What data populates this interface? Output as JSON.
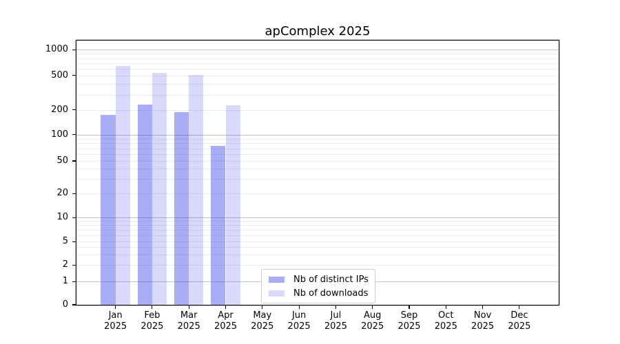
{
  "title": "apComplex 2025",
  "chart_data": {
    "type": "bar",
    "title": "apComplex 2025",
    "categories": [
      "Jan",
      "Feb",
      "Mar",
      "Apr",
      "May",
      "Jun",
      "Jul",
      "Aug",
      "Sep",
      "Oct",
      "Nov",
      "Dec"
    ],
    "x_year_label": "2025",
    "series": [
      {
        "name": "Nb of distinct IPs",
        "color": "rgba(10,16,230,0.35)",
        "values": [
          175,
          230,
          190,
          75,
          0,
          0,
          0,
          0,
          0,
          0,
          0,
          0
        ]
      },
      {
        "name": "Nb of downloads",
        "color": "rgba(10,16,230,0.16)",
        "values": [
          650,
          540,
          510,
          225,
          0,
          0,
          0,
          0,
          0,
          0,
          0,
          0
        ]
      }
    ],
    "yscale": "symlog",
    "ylim": [
      0,
      1300
    ],
    "grid": "horizontal",
    "legend_position": "lower center",
    "y_axis": {
      "tick_labels": [
        "1000",
        "500",
        "200",
        "100",
        "50",
        "20",
        "10",
        "5",
        "2",
        "1",
        "0"
      ],
      "ticks": [
        {
          "value": 1000,
          "frac": 0.035
        },
        {
          "value": 500,
          "frac": 0.1322
        },
        {
          "value": 200,
          "frac": 0.2627
        },
        {
          "value": 100,
          "frac": 0.3565
        },
        {
          "value": 50,
          "frac": 0.4556
        },
        {
          "value": 20,
          "frac": 0.5783
        },
        {
          "value": 10,
          "frac": 0.6695
        },
        {
          "value": 5,
          "frac": 0.7608
        },
        {
          "value": 2,
          "frac": 0.8495
        },
        {
          "value": 1,
          "frac": 0.9121
        },
        {
          "value": 0,
          "frac": 1.0
        }
      ],
      "grid_major": [
        1,
        10,
        100,
        1000
      ],
      "grid_minor": [
        2,
        3,
        4,
        5,
        6,
        7,
        8,
        9,
        20,
        30,
        40,
        50,
        60,
        70,
        80,
        90,
        200,
        300,
        400,
        500,
        600,
        700,
        800,
        900
      ]
    }
  },
  "colors": {
    "spine": "#000000",
    "grid_major": "#c3c3c3",
    "grid_minor": "#ebebeb",
    "legend_border": "#cccccc"
  }
}
